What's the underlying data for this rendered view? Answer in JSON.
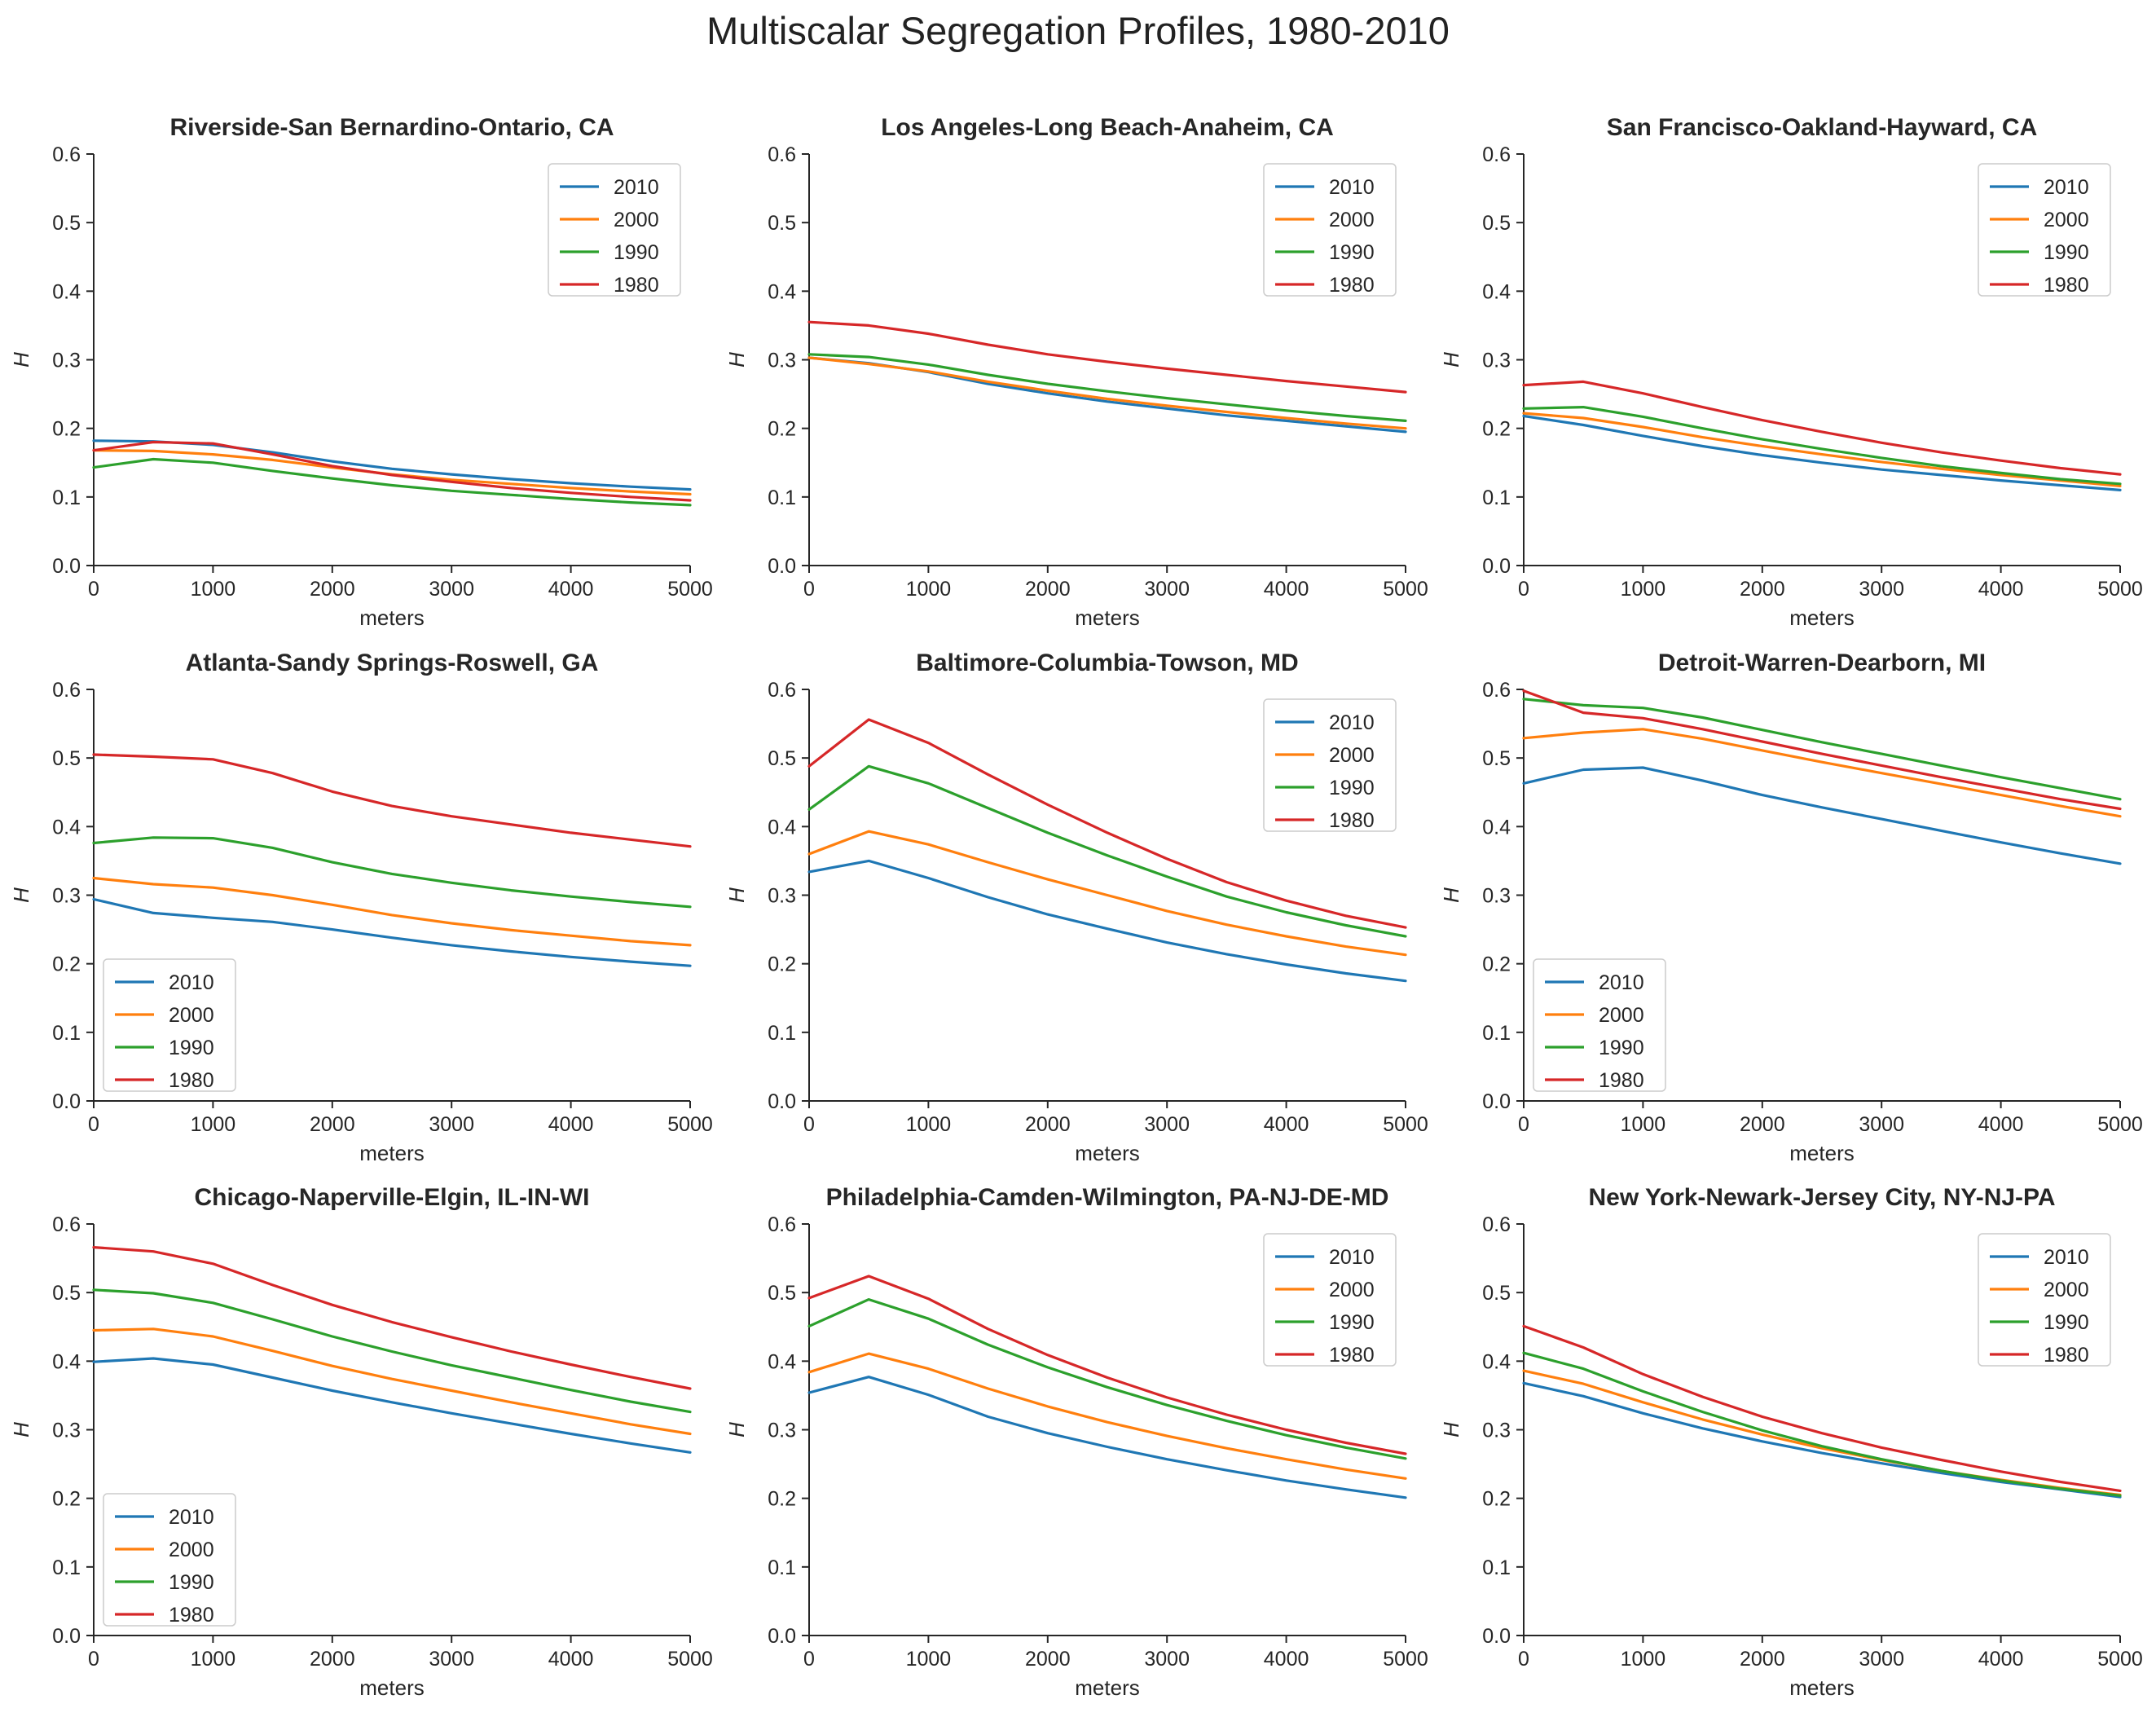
{
  "figure": {
    "title": "Multiscalar Segregation Profiles, 1980-2010"
  },
  "colors": {
    "2010": "#1f77b4",
    "2000": "#ff7f0e",
    "1990": "#2ca02c",
    "1980": "#d62728"
  },
  "chart_data": [
    {
      "type": "line",
      "title": "Riverside-San Bernardino-Ontario, CA",
      "xlabel": "meters",
      "ylabel": "H",
      "xlim": [
        0,
        5000
      ],
      "ylim": [
        0,
        0.6
      ],
      "xticks": [
        0,
        1000,
        2000,
        3000,
        4000,
        5000
      ],
      "yticks": [
        0.0,
        0.1,
        0.2,
        0.3,
        0.4,
        0.5,
        0.6
      ],
      "legend_loc": "upper-right",
      "x": [
        0,
        500,
        1000,
        1500,
        2000,
        2500,
        3000,
        3500,
        4000,
        4500,
        5000
      ],
      "series": [
        {
          "name": "2010",
          "color": "#1f77b4",
          "values": [
            0.182,
            0.181,
            0.176,
            0.165,
            0.152,
            0.141,
            0.133,
            0.126,
            0.12,
            0.115,
            0.111
          ]
        },
        {
          "name": "2000",
          "color": "#ff7f0e",
          "values": [
            0.168,
            0.167,
            0.162,
            0.154,
            0.143,
            0.133,
            0.125,
            0.119,
            0.113,
            0.108,
            0.104
          ]
        },
        {
          "name": "1990",
          "color": "#2ca02c",
          "values": [
            0.143,
            0.155,
            0.15,
            0.138,
            0.127,
            0.117,
            0.109,
            0.103,
            0.097,
            0.092,
            0.088
          ]
        },
        {
          "name": "1980",
          "color": "#d62728",
          "values": [
            0.168,
            0.18,
            0.178,
            0.162,
            0.145,
            0.132,
            0.122,
            0.113,
            0.106,
            0.1,
            0.095
          ]
        }
      ]
    },
    {
      "type": "line",
      "title": "Los Angeles-Long Beach-Anaheim, CA",
      "xlabel": "meters",
      "ylabel": "H",
      "xlim": [
        0,
        5000
      ],
      "ylim": [
        0,
        0.6
      ],
      "xticks": [
        0,
        1000,
        2000,
        3000,
        4000,
        5000
      ],
      "yticks": [
        0.0,
        0.1,
        0.2,
        0.3,
        0.4,
        0.5,
        0.6
      ],
      "legend_loc": "upper-right",
      "x": [
        0,
        500,
        1000,
        1500,
        2000,
        2500,
        3000,
        3500,
        4000,
        4500,
        5000
      ],
      "series": [
        {
          "name": "2010",
          "color": "#1f77b4",
          "values": [
            0.303,
            0.295,
            0.282,
            0.265,
            0.251,
            0.239,
            0.229,
            0.219,
            0.211,
            0.203,
            0.195
          ]
        },
        {
          "name": "2000",
          "color": "#ff7f0e",
          "values": [
            0.303,
            0.294,
            0.283,
            0.268,
            0.255,
            0.243,
            0.233,
            0.224,
            0.215,
            0.207,
            0.2
          ]
        },
        {
          "name": "1990",
          "color": "#2ca02c",
          "values": [
            0.308,
            0.304,
            0.293,
            0.278,
            0.265,
            0.254,
            0.244,
            0.235,
            0.226,
            0.218,
            0.211
          ]
        },
        {
          "name": "1980",
          "color": "#d62728",
          "values": [
            0.355,
            0.35,
            0.338,
            0.322,
            0.308,
            0.297,
            0.287,
            0.278,
            0.269,
            0.261,
            0.253
          ]
        }
      ]
    },
    {
      "type": "line",
      "title": "San Francisco-Oakland-Hayward, CA",
      "xlabel": "meters",
      "ylabel": "H",
      "xlim": [
        0,
        5000
      ],
      "ylim": [
        0,
        0.6
      ],
      "xticks": [
        0,
        1000,
        2000,
        3000,
        4000,
        5000
      ],
      "yticks": [
        0.0,
        0.1,
        0.2,
        0.3,
        0.4,
        0.5,
        0.6
      ],
      "legend_loc": "upper-right",
      "x": [
        0,
        500,
        1000,
        1500,
        2000,
        2500,
        3000,
        3500,
        4000,
        4500,
        5000
      ],
      "series": [
        {
          "name": "2010",
          "color": "#1f77b4",
          "values": [
            0.218,
            0.205,
            0.189,
            0.174,
            0.161,
            0.15,
            0.14,
            0.132,
            0.124,
            0.117,
            0.11
          ]
        },
        {
          "name": "2000",
          "color": "#ff7f0e",
          "values": [
            0.222,
            0.215,
            0.202,
            0.187,
            0.174,
            0.162,
            0.151,
            0.141,
            0.132,
            0.124,
            0.116
          ]
        },
        {
          "name": "1990",
          "color": "#2ca02c",
          "values": [
            0.229,
            0.231,
            0.217,
            0.2,
            0.184,
            0.17,
            0.157,
            0.145,
            0.135,
            0.126,
            0.119
          ]
        },
        {
          "name": "1980",
          "color": "#d62728",
          "values": [
            0.263,
            0.268,
            0.251,
            0.231,
            0.212,
            0.195,
            0.179,
            0.165,
            0.153,
            0.142,
            0.133
          ]
        }
      ]
    },
    {
      "type": "line",
      "title": "Atlanta-Sandy Springs-Roswell, GA",
      "xlabel": "meters",
      "ylabel": "H",
      "xlim": [
        0,
        5000
      ],
      "ylim": [
        0,
        0.6
      ],
      "xticks": [
        0,
        1000,
        2000,
        3000,
        4000,
        5000
      ],
      "yticks": [
        0.0,
        0.1,
        0.2,
        0.3,
        0.4,
        0.5,
        0.6
      ],
      "legend_loc": "lower-left",
      "x": [
        0,
        500,
        1000,
        1500,
        2000,
        2500,
        3000,
        3500,
        4000,
        4500,
        5000
      ],
      "series": [
        {
          "name": "2010",
          "color": "#1f77b4",
          "values": [
            0.294,
            0.274,
            0.267,
            0.261,
            0.25,
            0.238,
            0.227,
            0.218,
            0.21,
            0.203,
            0.197
          ]
        },
        {
          "name": "2000",
          "color": "#ff7f0e",
          "values": [
            0.325,
            0.316,
            0.311,
            0.3,
            0.286,
            0.271,
            0.259,
            0.249,
            0.241,
            0.233,
            0.227
          ]
        },
        {
          "name": "1990",
          "color": "#2ca02c",
          "values": [
            0.376,
            0.384,
            0.383,
            0.369,
            0.348,
            0.331,
            0.318,
            0.307,
            0.298,
            0.29,
            0.283
          ]
        },
        {
          "name": "1980",
          "color": "#d62728",
          "values": [
            0.505,
            0.502,
            0.498,
            0.478,
            0.451,
            0.43,
            0.415,
            0.403,
            0.391,
            0.381,
            0.371
          ]
        }
      ]
    },
    {
      "type": "line",
      "title": "Baltimore-Columbia-Towson, MD",
      "xlabel": "meters",
      "ylabel": "H",
      "xlim": [
        0,
        5000
      ],
      "ylim": [
        0,
        0.6
      ],
      "xticks": [
        0,
        1000,
        2000,
        3000,
        4000,
        5000
      ],
      "yticks": [
        0.0,
        0.1,
        0.2,
        0.3,
        0.4,
        0.5,
        0.6
      ],
      "legend_loc": "upper-right",
      "x": [
        0,
        500,
        1000,
        1500,
        2000,
        2500,
        3000,
        3500,
        4000,
        4500,
        5000
      ],
      "series": [
        {
          "name": "2010",
          "color": "#1f77b4",
          "values": [
            0.334,
            0.35,
            0.325,
            0.297,
            0.272,
            0.251,
            0.231,
            0.214,
            0.199,
            0.186,
            0.175
          ]
        },
        {
          "name": "2000",
          "color": "#ff7f0e",
          "values": [
            0.36,
            0.393,
            0.374,
            0.348,
            0.323,
            0.3,
            0.277,
            0.257,
            0.24,
            0.225,
            0.213
          ]
        },
        {
          "name": "1990",
          "color": "#2ca02c",
          "values": [
            0.425,
            0.488,
            0.463,
            0.427,
            0.391,
            0.358,
            0.327,
            0.298,
            0.275,
            0.256,
            0.24
          ]
        },
        {
          "name": "1980",
          "color": "#d62728",
          "values": [
            0.488,
            0.556,
            0.522,
            0.476,
            0.432,
            0.391,
            0.353,
            0.319,
            0.292,
            0.27,
            0.253
          ]
        }
      ]
    },
    {
      "type": "line",
      "title": "Detroit-Warren-Dearborn, MI",
      "xlabel": "meters",
      "ylabel": "H",
      "xlim": [
        0,
        5000
      ],
      "ylim": [
        0,
        0.6
      ],
      "xticks": [
        0,
        1000,
        2000,
        3000,
        4000,
        5000
      ],
      "yticks": [
        0.0,
        0.1,
        0.2,
        0.3,
        0.4,
        0.5,
        0.6
      ],
      "legend_loc": "lower-left",
      "x": [
        0,
        500,
        1000,
        1500,
        2000,
        2500,
        3000,
        3500,
        4000,
        4500,
        5000
      ],
      "series": [
        {
          "name": "2010",
          "color": "#1f77b4",
          "values": [
            0.463,
            0.483,
            0.486,
            0.467,
            0.446,
            0.428,
            0.411,
            0.394,
            0.377,
            0.361,
            0.346
          ]
        },
        {
          "name": "2000",
          "color": "#ff7f0e",
          "values": [
            0.529,
            0.537,
            0.542,
            0.528,
            0.511,
            0.494,
            0.478,
            0.462,
            0.446,
            0.43,
            0.415
          ]
        },
        {
          "name": "1990",
          "color": "#2ca02c",
          "values": [
            0.586,
            0.577,
            0.573,
            0.559,
            0.541,
            0.523,
            0.506,
            0.489,
            0.472,
            0.456,
            0.44
          ]
        },
        {
          "name": "1980",
          "color": "#d62728",
          "values": [
            0.598,
            0.566,
            0.558,
            0.542,
            0.524,
            0.506,
            0.489,
            0.472,
            0.456,
            0.44,
            0.426
          ]
        }
      ]
    },
    {
      "type": "line",
      "title": "Chicago-Naperville-Elgin, IL-IN-WI",
      "xlabel": "meters",
      "ylabel": "H",
      "xlim": [
        0,
        5000
      ],
      "ylim": [
        0,
        0.6
      ],
      "xticks": [
        0,
        1000,
        2000,
        3000,
        4000,
        5000
      ],
      "yticks": [
        0.0,
        0.1,
        0.2,
        0.3,
        0.4,
        0.5,
        0.6
      ],
      "legend_loc": "lower-left",
      "x": [
        0,
        500,
        1000,
        1500,
        2000,
        2500,
        3000,
        3500,
        4000,
        4500,
        5000
      ],
      "series": [
        {
          "name": "2010",
          "color": "#1f77b4",
          "values": [
            0.399,
            0.404,
            0.395,
            0.376,
            0.357,
            0.34,
            0.324,
            0.309,
            0.294,
            0.28,
            0.267
          ]
        },
        {
          "name": "2000",
          "color": "#ff7f0e",
          "values": [
            0.445,
            0.447,
            0.436,
            0.415,
            0.393,
            0.374,
            0.357,
            0.34,
            0.324,
            0.308,
            0.294
          ]
        },
        {
          "name": "1990",
          "color": "#2ca02c",
          "values": [
            0.504,
            0.499,
            0.485,
            0.461,
            0.436,
            0.414,
            0.394,
            0.376,
            0.358,
            0.341,
            0.326
          ]
        },
        {
          "name": "1980",
          "color": "#d62728",
          "values": [
            0.566,
            0.56,
            0.542,
            0.511,
            0.482,
            0.457,
            0.435,
            0.414,
            0.395,
            0.377,
            0.36
          ]
        }
      ]
    },
    {
      "type": "line",
      "title": "Philadelphia-Camden-Wilmington, PA-NJ-DE-MD",
      "xlabel": "meters",
      "ylabel": "H",
      "xlim": [
        0,
        5000
      ],
      "ylim": [
        0,
        0.6
      ],
      "xticks": [
        0,
        1000,
        2000,
        3000,
        4000,
        5000
      ],
      "yticks": [
        0.0,
        0.1,
        0.2,
        0.3,
        0.4,
        0.5,
        0.6
      ],
      "legend_loc": "upper-right",
      "x": [
        0,
        500,
        1000,
        1500,
        2000,
        2500,
        3000,
        3500,
        4000,
        4500,
        5000
      ],
      "series": [
        {
          "name": "2010",
          "color": "#1f77b4",
          "values": [
            0.354,
            0.377,
            0.351,
            0.319,
            0.295,
            0.275,
            0.257,
            0.241,
            0.226,
            0.213,
            0.201
          ]
        },
        {
          "name": "2000",
          "color": "#ff7f0e",
          "values": [
            0.384,
            0.411,
            0.389,
            0.36,
            0.334,
            0.311,
            0.291,
            0.273,
            0.257,
            0.242,
            0.229
          ]
        },
        {
          "name": "1990",
          "color": "#2ca02c",
          "values": [
            0.451,
            0.49,
            0.462,
            0.424,
            0.391,
            0.362,
            0.336,
            0.313,
            0.292,
            0.274,
            0.258
          ]
        },
        {
          "name": "1980",
          "color": "#d62728",
          "values": [
            0.492,
            0.524,
            0.491,
            0.447,
            0.409,
            0.376,
            0.347,
            0.322,
            0.3,
            0.281,
            0.265
          ]
        }
      ]
    },
    {
      "type": "line",
      "title": "New York-Newark-Jersey City, NY-NJ-PA",
      "xlabel": "meters",
      "ylabel": "H",
      "xlim": [
        0,
        5000
      ],
      "ylim": [
        0,
        0.6
      ],
      "xticks": [
        0,
        1000,
        2000,
        3000,
        4000,
        5000
      ],
      "yticks": [
        0.0,
        0.1,
        0.2,
        0.3,
        0.4,
        0.5,
        0.6
      ],
      "legend_loc": "upper-right",
      "x": [
        0,
        500,
        1000,
        1500,
        2000,
        2500,
        3000,
        3500,
        4000,
        4500,
        5000
      ],
      "series": [
        {
          "name": "2010",
          "color": "#1f77b4",
          "values": [
            0.368,
            0.349,
            0.324,
            0.302,
            0.283,
            0.266,
            0.251,
            0.237,
            0.224,
            0.213,
            0.202
          ]
        },
        {
          "name": "2000",
          "color": "#ff7f0e",
          "values": [
            0.386,
            0.367,
            0.34,
            0.315,
            0.293,
            0.273,
            0.256,
            0.24,
            0.227,
            0.215,
            0.205
          ]
        },
        {
          "name": "1990",
          "color": "#2ca02c",
          "values": [
            0.412,
            0.389,
            0.356,
            0.326,
            0.299,
            0.276,
            0.257,
            0.24,
            0.226,
            0.214,
            0.204
          ]
        },
        {
          "name": "1980",
          "color": "#d62728",
          "values": [
            0.451,
            0.42,
            0.381,
            0.348,
            0.319,
            0.295,
            0.274,
            0.256,
            0.239,
            0.224,
            0.211
          ]
        }
      ]
    }
  ]
}
